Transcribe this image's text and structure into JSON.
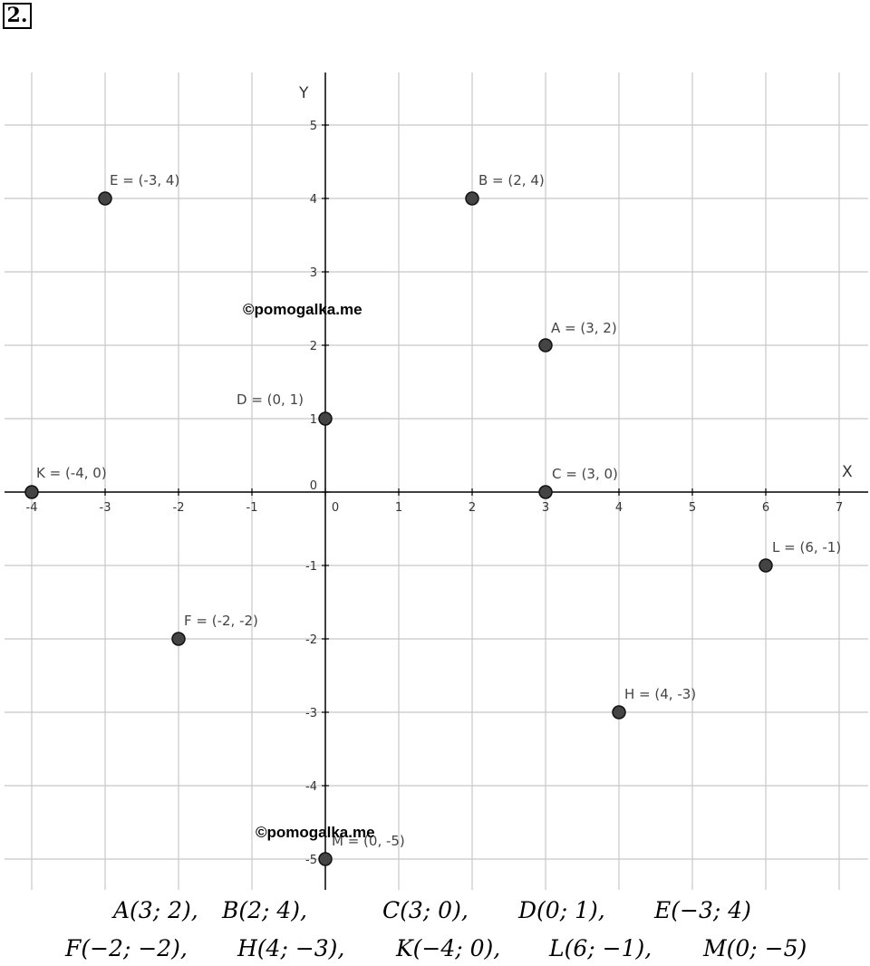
{
  "task_number": "2.",
  "watermarks": [
    "©pomogalka.me",
    "©pomogalka.me"
  ],
  "chart_data": {
    "type": "scatter",
    "xlabel": "X",
    "ylabel": "Y",
    "xlim": [
      -4.4,
      7.4
    ],
    "ylim": [
      -5.4,
      5.6
    ],
    "grid": true,
    "x_ticks": [
      -4,
      -3,
      -2,
      -1,
      0,
      1,
      2,
      3,
      4,
      5,
      6,
      7
    ],
    "y_ticks": [
      -5,
      -4,
      -3,
      -2,
      -1,
      0,
      1,
      2,
      3,
      4,
      5
    ],
    "x_tick_labels": [
      "-4",
      "-3",
      "-2",
      "-1",
      "0",
      "1",
      "2",
      "3",
      "4",
      "5",
      "6",
      "7"
    ],
    "y_tick_labels": [
      "-5",
      "-4",
      "-3",
      "-2",
      "-1",
      "0",
      "1",
      "2",
      "3",
      "4",
      "5"
    ],
    "points": [
      {
        "name": "A",
        "x": 3,
        "y": 2,
        "label": "A = (3, 2)"
      },
      {
        "name": "B",
        "x": 2,
        "y": 4,
        "label": "B = (2, 4)"
      },
      {
        "name": "C",
        "x": 3,
        "y": 0,
        "label": "C = (3, 0)"
      },
      {
        "name": "D",
        "x": 0,
        "y": 1,
        "label": "D = (0, 1)"
      },
      {
        "name": "E",
        "x": -3,
        "y": 4,
        "label": "E = (-3, 4)"
      },
      {
        "name": "F",
        "x": -2,
        "y": -2,
        "label": "F = (-2, -2)"
      },
      {
        "name": "H",
        "x": 4,
        "y": -3,
        "label": "H = (4, -3)"
      },
      {
        "name": "K",
        "x": -4,
        "y": 0,
        "label": "K = (-4, 0)"
      },
      {
        "name": "L",
        "x": 6,
        "y": -1,
        "label": "L = (6, -1)"
      },
      {
        "name": "M",
        "x": 0,
        "y": -5,
        "label": "M = (0, -5)"
      }
    ]
  },
  "answers": {
    "row1": [
      "A(3; 2),",
      "B(2; 4),",
      "C(3; 0),",
      "D(0; 1),",
      "E(−3; 4)"
    ],
    "row2": [
      "F(−2; −2),",
      "H(4; −3),",
      "K(−4; 0),",
      "L(6; −1),",
      "M(0; −5)"
    ]
  }
}
